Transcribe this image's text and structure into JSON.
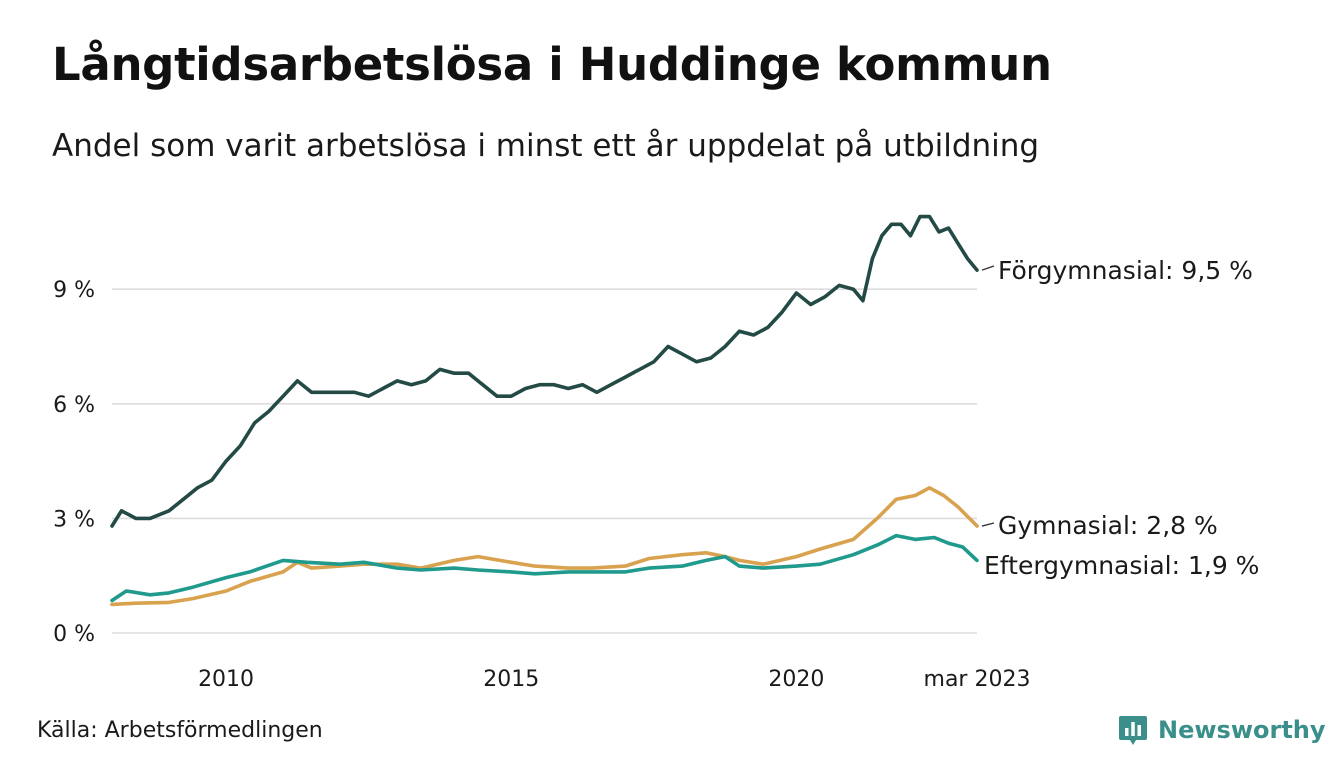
{
  "title": "Långtidsarbetslösa i Huddinge kommun",
  "subtitle": "Andel som varit arbetslösa i minst ett år uppdelat på utbildning",
  "source": "Källa: Arbetsförmedlingen",
  "brand": "Newsworthy",
  "colors": {
    "forgymnasial": "#234a45",
    "gymnasial": "#d9a24e",
    "eftergymnasial": "#1f9a8c",
    "grid": "#dddddd",
    "brand": "#3a8f8a"
  },
  "chart_data": {
    "type": "line",
    "title": "Långtidsarbetslösa i Huddinge kommun",
    "subtitle": "Andel som varit arbetslösa i minst ett år uppdelat på utbildning",
    "x_axis": {
      "start": "2008-01",
      "end": "2023-03",
      "ticks": [
        {
          "value": "2010-01",
          "label": "2010"
        },
        {
          "value": "2015-01",
          "label": "2015"
        },
        {
          "value": "2020-01",
          "label": "2020"
        },
        {
          "value": "2023-03",
          "label": "mar 2023"
        }
      ]
    },
    "y_axis": {
      "range": [
        0,
        11
      ],
      "unit": "%",
      "ticks": [
        {
          "value": 0,
          "label": "0 %"
        },
        {
          "value": 3,
          "label": "3 %"
        },
        {
          "value": 6,
          "label": "6 %"
        },
        {
          "value": 9,
          "label": "9 %"
        }
      ]
    },
    "grid": true,
    "series": [
      {
        "key": "forgymnasial",
        "name": "Förgymnasial",
        "end_label": "Förgymnasial: 9,5 %",
        "points": [
          [
            "2008-01",
            2.8
          ],
          [
            "2008-03",
            3.2
          ],
          [
            "2008-06",
            3.0
          ],
          [
            "2008-09",
            3.0
          ],
          [
            "2009-01",
            3.2
          ],
          [
            "2009-04",
            3.5
          ],
          [
            "2009-07",
            3.8
          ],
          [
            "2009-10",
            4.0
          ],
          [
            "2010-01",
            4.5
          ],
          [
            "2010-04",
            4.9
          ],
          [
            "2010-07",
            5.5
          ],
          [
            "2010-10",
            5.8
          ],
          [
            "2011-01",
            6.2
          ],
          [
            "2011-04",
            6.6
          ],
          [
            "2011-07",
            6.3
          ],
          [
            "2011-10",
            6.3
          ],
          [
            "2012-01",
            6.3
          ],
          [
            "2012-04",
            6.3
          ],
          [
            "2012-07",
            6.2
          ],
          [
            "2012-10",
            6.4
          ],
          [
            "2013-01",
            6.6
          ],
          [
            "2013-04",
            6.5
          ],
          [
            "2013-07",
            6.6
          ],
          [
            "2013-10",
            6.9
          ],
          [
            "2014-01",
            6.8
          ],
          [
            "2014-04",
            6.8
          ],
          [
            "2014-07",
            6.5
          ],
          [
            "2014-10",
            6.2
          ],
          [
            "2015-01",
            6.2
          ],
          [
            "2015-04",
            6.4
          ],
          [
            "2015-07",
            6.5
          ],
          [
            "2015-10",
            6.5
          ],
          [
            "2016-01",
            6.4
          ],
          [
            "2016-04",
            6.5
          ],
          [
            "2016-07",
            6.3
          ],
          [
            "2016-10",
            6.5
          ],
          [
            "2017-01",
            6.7
          ],
          [
            "2017-04",
            6.9
          ],
          [
            "2017-07",
            7.1
          ],
          [
            "2017-10",
            7.5
          ],
          [
            "2018-01",
            7.3
          ],
          [
            "2018-04",
            7.1
          ],
          [
            "2018-07",
            7.2
          ],
          [
            "2018-10",
            7.5
          ],
          [
            "2019-01",
            7.9
          ],
          [
            "2019-04",
            7.8
          ],
          [
            "2019-07",
            8.0
          ],
          [
            "2019-10",
            8.4
          ],
          [
            "2020-01",
            8.9
          ],
          [
            "2020-04",
            8.6
          ],
          [
            "2020-07",
            8.8
          ],
          [
            "2020-10",
            9.1
          ],
          [
            "2021-01",
            9.0
          ],
          [
            "2021-03",
            8.7
          ],
          [
            "2021-05",
            9.8
          ],
          [
            "2021-07",
            10.4
          ],
          [
            "2021-09",
            10.7
          ],
          [
            "2021-11",
            10.7
          ],
          [
            "2022-01",
            10.4
          ],
          [
            "2022-03",
            10.9
          ],
          [
            "2022-05",
            10.9
          ],
          [
            "2022-07",
            10.5
          ],
          [
            "2022-09",
            10.6
          ],
          [
            "2022-11",
            10.2
          ],
          [
            "2023-01",
            9.8
          ],
          [
            "2023-03",
            9.5
          ]
        ]
      },
      {
        "key": "gymnasial",
        "name": "Gymnasial",
        "end_label": "Gymnasial: 2,8 %",
        "points": [
          [
            "2008-01",
            0.75
          ],
          [
            "2008-06",
            0.78
          ],
          [
            "2009-01",
            0.8
          ],
          [
            "2009-06",
            0.9
          ],
          [
            "2010-01",
            1.1
          ],
          [
            "2010-06",
            1.35
          ],
          [
            "2011-01",
            1.6
          ],
          [
            "2011-04",
            1.85
          ],
          [
            "2011-07",
            1.7
          ],
          [
            "2012-01",
            1.75
          ],
          [
            "2012-06",
            1.8
          ],
          [
            "2013-01",
            1.8
          ],
          [
            "2013-06",
            1.7
          ],
          [
            "2014-01",
            1.9
          ],
          [
            "2014-06",
            2.0
          ],
          [
            "2015-01",
            1.85
          ],
          [
            "2015-06",
            1.75
          ],
          [
            "2016-01",
            1.7
          ],
          [
            "2016-06",
            1.7
          ],
          [
            "2017-01",
            1.75
          ],
          [
            "2017-06",
            1.95
          ],
          [
            "2018-01",
            2.05
          ],
          [
            "2018-06",
            2.1
          ],
          [
            "2018-10",
            2.0
          ],
          [
            "2019-01",
            1.9
          ],
          [
            "2019-06",
            1.8
          ],
          [
            "2020-01",
            2.0
          ],
          [
            "2020-06",
            2.2
          ],
          [
            "2021-01",
            2.45
          ],
          [
            "2021-06",
            3.0
          ],
          [
            "2021-10",
            3.5
          ],
          [
            "2022-02",
            3.6
          ],
          [
            "2022-05",
            3.8
          ],
          [
            "2022-08",
            3.6
          ],
          [
            "2022-11",
            3.3
          ],
          [
            "2023-03",
            2.8
          ]
        ]
      },
      {
        "key": "eftergymnasial",
        "name": "Eftergymnasial",
        "end_label": "Eftergymnasial: 1,9 %",
        "points": [
          [
            "2008-01",
            0.85
          ],
          [
            "2008-04",
            1.1
          ],
          [
            "2008-09",
            1.0
          ],
          [
            "2009-01",
            1.05
          ],
          [
            "2009-06",
            1.2
          ],
          [
            "2010-01",
            1.45
          ],
          [
            "2010-06",
            1.6
          ],
          [
            "2011-01",
            1.9
          ],
          [
            "2011-06",
            1.85
          ],
          [
            "2012-01",
            1.8
          ],
          [
            "2012-06",
            1.85
          ],
          [
            "2013-01",
            1.7
          ],
          [
            "2013-06",
            1.65
          ],
          [
            "2014-01",
            1.7
          ],
          [
            "2014-06",
            1.65
          ],
          [
            "2015-01",
            1.6
          ],
          [
            "2015-06",
            1.55
          ],
          [
            "2016-01",
            1.6
          ],
          [
            "2016-06",
            1.6
          ],
          [
            "2017-01",
            1.6
          ],
          [
            "2017-06",
            1.7
          ],
          [
            "2018-01",
            1.75
          ],
          [
            "2018-06",
            1.9
          ],
          [
            "2018-10",
            2.0
          ],
          [
            "2019-01",
            1.75
          ],
          [
            "2019-06",
            1.7
          ],
          [
            "2020-01",
            1.75
          ],
          [
            "2020-06",
            1.8
          ],
          [
            "2021-01",
            2.05
          ],
          [
            "2021-06",
            2.3
          ],
          [
            "2021-10",
            2.55
          ],
          [
            "2022-02",
            2.45
          ],
          [
            "2022-06",
            2.5
          ],
          [
            "2022-09",
            2.35
          ],
          [
            "2022-12",
            2.25
          ],
          [
            "2023-03",
            1.9
          ]
        ]
      }
    ]
  }
}
